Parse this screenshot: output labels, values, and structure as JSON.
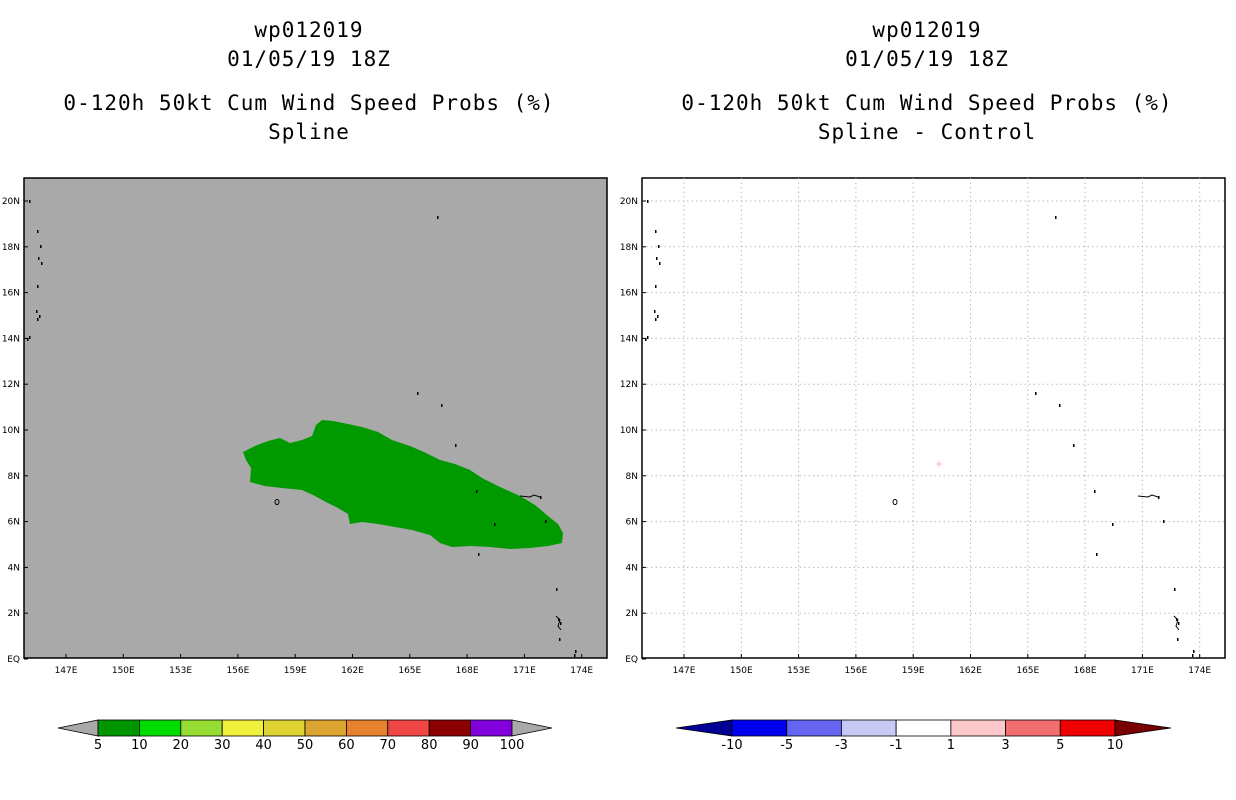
{
  "colors": {
    "map_background": "#a9a9a9",
    "prob_fill": "#009900",
    "diff_tick": "#ffc0c0",
    "gridline": "#bbbbbb"
  },
  "left_panel": {
    "title": [
      "wp012019",
      "01/05/19 18Z",
      "0-120h 50kt Cum Wind Speed Probs (%)",
      "Spline"
    ],
    "x_ticks": [
      "147E",
      "150E",
      "153E",
      "156E",
      "159E",
      "162E",
      "165E",
      "168E",
      "171E",
      "174E"
    ],
    "y_ticks": [
      "EQ",
      "2N",
      "4N",
      "6N",
      "8N",
      "10N",
      "12N",
      "14N",
      "16N",
      "18N",
      "20N"
    ],
    "colorbar": {
      "colors": [
        "#a9a9a9",
        "#009600",
        "#00dc00",
        "#96dc32",
        "#f0f03c",
        "#dcd232",
        "#dca532",
        "#e6822d",
        "#f04646",
        "#8c0000",
        "#8200dc",
        "#a9a9a9"
      ],
      "labels": [
        "5",
        "10",
        "20",
        "30",
        "40",
        "50",
        "60",
        "70",
        "80",
        "90",
        "100"
      ]
    }
  },
  "right_panel": {
    "title": [
      "wp012019",
      "01/05/19 18Z",
      "0-120h 50kt Cum Wind Speed Probs (%)",
      "Spline - Control"
    ],
    "x_ticks": [
      "147E",
      "150E",
      "153E",
      "156E",
      "159E",
      "162E",
      "165E",
      "168E",
      "171E",
      "174E"
    ],
    "y_ticks": [
      "EQ",
      "2N",
      "4N",
      "6N",
      "8N",
      "10N",
      "12N",
      "14N",
      "16N",
      "18N",
      "20N"
    ],
    "colorbar": {
      "colors": [
        "#000096",
        "#0000f0",
        "#6464f0",
        "#c8c8f5",
        "#ffffff",
        "#fac8c8",
        "#f06e6e",
        "#f00000",
        "#780000"
      ],
      "labels": [
        "-10",
        "-5",
        "-3",
        "-1",
        "1",
        "3",
        "5",
        "10"
      ]
    }
  }
}
